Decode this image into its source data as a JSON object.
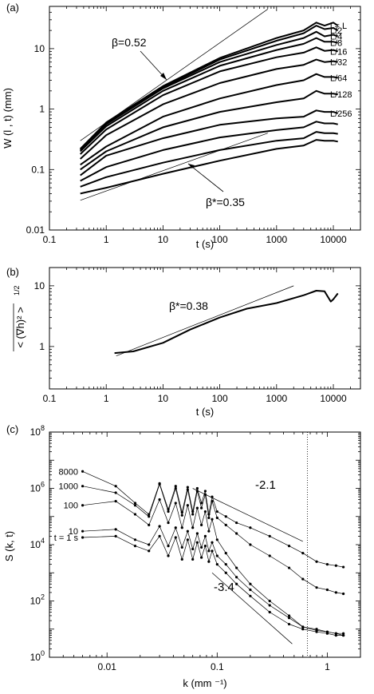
{
  "chart_data": [
    {
      "panel": "(a)",
      "type": "line",
      "xlabel": "t (s)",
      "ylabel": "W (l , t) (mm)",
      "xscale": "log",
      "yscale": "log",
      "xlim": [
        0.1,
        30000
      ],
      "ylim": [
        0.01,
        50
      ],
      "xticks": [
        {
          "v": 0.1,
          "l": "0.1"
        },
        {
          "v": 1,
          "l": "1"
        },
        {
          "v": 10,
          "l": "10"
        },
        {
          "v": 100,
          "l": "100"
        },
        {
          "v": 1000,
          "l": "1000"
        },
        {
          "v": 10000,
          "l": "10000"
        }
      ],
      "yticks": [
        {
          "v": 0.01,
          "l": "0.01"
        },
        {
          "v": 0.1,
          "l": "0.1"
        },
        {
          "v": 1,
          "l": "1"
        },
        {
          "v": 10,
          "l": "10"
        }
      ],
      "series": [
        {
          "name": "l = L",
          "x": [
            0.35,
            1,
            10,
            100,
            1000,
            3000,
            5000,
            7000,
            10000,
            12000
          ],
          "y": [
            0.22,
            0.6,
            2.4,
            7.0,
            15,
            20,
            27,
            24,
            27,
            24
          ]
        },
        {
          "name": "L/2",
          "x": [
            0.35,
            1,
            10,
            100,
            1000,
            3000,
            5000,
            7000,
            10000,
            12000
          ],
          "y": [
            0.22,
            0.59,
            2.3,
            6.6,
            13.5,
            18,
            24,
            21,
            22,
            20
          ]
        },
        {
          "name": "L/4",
          "x": [
            0.35,
            1,
            10,
            100,
            1000,
            3000,
            5000,
            7000,
            10000,
            12000
          ],
          "y": [
            0.21,
            0.56,
            2.2,
            6.0,
            11.5,
            15,
            19,
            16,
            17,
            16
          ]
        },
        {
          "name": "L/8",
          "x": [
            0.35,
            1,
            10,
            100,
            1000,
            3000,
            5000,
            7000,
            10000,
            12000
          ],
          "y": [
            0.2,
            0.52,
            2.0,
            5.2,
            9.5,
            12,
            15,
            13,
            13,
            12.5
          ]
        },
        {
          "name": "L/16",
          "x": [
            0.35,
            1,
            10,
            100,
            1000,
            3000,
            5000,
            7000,
            10000,
            12000
          ],
          "y": [
            0.18,
            0.46,
            1.7,
            4.2,
            7.2,
            8.6,
            10.5,
            9.2,
            9.5,
            9
          ]
        },
        {
          "name": "L/32",
          "x": [
            0.35,
            1,
            10,
            100,
            1000,
            3000,
            5000,
            7000,
            10000,
            12000
          ],
          "y": [
            0.15,
            0.37,
            1.2,
            2.7,
            4.6,
            5.4,
            6.6,
            6.0,
            6.2,
            6.0
          ]
        },
        {
          "name": "L/64",
          "x": [
            0.35,
            1,
            10,
            100,
            1000,
            3000,
            5000,
            7000,
            10000,
            12000
          ],
          "y": [
            0.12,
            0.24,
            0.75,
            1.5,
            2.5,
            3.0,
            3.8,
            3.4,
            3.4,
            3.3
          ]
        },
        {
          "name": "L/128",
          "x": [
            0.35,
            1,
            10,
            100,
            1000,
            3000,
            5000,
            7000,
            10000,
            12000
          ],
          "y": [
            0.1,
            0.2,
            0.5,
            0.9,
            1.3,
            1.5,
            2.0,
            1.8,
            1.8,
            1.75
          ]
        },
        {
          "name": "L/256",
          "x": [
            0.35,
            1,
            10,
            100,
            1000,
            3000,
            5000,
            7000,
            10000,
            12000
          ],
          "y": [
            0.08,
            0.17,
            0.33,
            0.55,
            0.7,
            0.75,
            0.95,
            0.9,
            0.9,
            0.85
          ]
        },
        {
          "name": "",
          "x": [
            0.35,
            1,
            10,
            100,
            1000,
            3000,
            5000,
            7000,
            10000,
            12000
          ],
          "y": [
            0.065,
            0.11,
            0.21,
            0.34,
            0.45,
            0.5,
            0.62,
            0.58,
            0.58,
            0.56
          ]
        },
        {
          "name": "",
          "x": [
            0.35,
            1,
            10,
            100,
            1000,
            3000,
            5000,
            7000,
            10000,
            12000
          ],
          "y": [
            0.052,
            0.075,
            0.13,
            0.21,
            0.3,
            0.33,
            0.42,
            0.4,
            0.4,
            0.39
          ]
        },
        {
          "name": "",
          "x": [
            0.35,
            1,
            10,
            100,
            1000,
            3000,
            5000,
            7000,
            10000,
            12000
          ],
          "y": [
            0.04,
            0.05,
            0.085,
            0.14,
            0.22,
            0.25,
            0.31,
            0.3,
            0.3,
            0.29
          ]
        }
      ],
      "guide_lines": [
        {
          "x": [
            0.35,
            700
          ],
          "y": [
            0.3,
            45
          ]
        },
        {
          "x": [
            0.35,
            700
          ],
          "y": [
            0.031,
            0.4
          ]
        }
      ],
      "annotations": {
        "beta": "β=0.52",
        "beta_star": "β*=0.35"
      }
    },
    {
      "panel": "(b)",
      "type": "line",
      "xlabel": "t (s)",
      "ylabel": "< (∇h)² >",
      "ylabel_exponent": "1/2",
      "xscale": "log",
      "yscale": "log",
      "xlim": [
        0.1,
        30000
      ],
      "ylim": [
        0.2,
        20
      ],
      "xticks": [
        {
          "v": 0.1,
          "l": "0.1"
        },
        {
          "v": 1,
          "l": "1"
        },
        {
          "v": 10,
          "l": "10"
        },
        {
          "v": 100,
          "l": "100"
        },
        {
          "v": 1000,
          "l": "1000"
        },
        {
          "v": 10000,
          "l": "10000"
        }
      ],
      "yticks": [
        {
          "v": 1,
          "l": "1"
        },
        {
          "v": 10,
          "l": "10"
        }
      ],
      "series": [
        {
          "name": "",
          "x": [
            1.4,
            3,
            10,
            30,
            100,
            300,
            1000,
            3000,
            5000,
            7000,
            9000,
            10000,
            12000
          ],
          "y": [
            0.78,
            0.83,
            1.15,
            1.9,
            3.0,
            4.2,
            5.2,
            7.0,
            8.3,
            8.1,
            5.5,
            6.0,
            7.5
          ]
        }
      ],
      "guide_lines": [
        {
          "x": [
            1.5,
            2000
          ],
          "y": [
            0.7,
            10
          ]
        }
      ],
      "annotations": {
        "beta_star": "β*=0.38"
      }
    },
    {
      "panel": "(c)",
      "type": "scatter",
      "xlabel": "k (mm ⁻¹)",
      "ylabel": "S (k, t)",
      "xscale": "log",
      "yscale": "log",
      "xlim": [
        0.003,
        2
      ],
      "ylim": [
        1,
        100000000
      ],
      "xticks": [
        {
          "v": 0.01,
          "l": "0.01"
        },
        {
          "v": 0.1,
          "l": "0.1"
        },
        {
          "v": 1,
          "l": "1"
        }
      ],
      "yticks": [
        {
          "v": 1,
          "l": "10",
          "e": "0"
        },
        {
          "v": 100,
          "l": "10",
          "e": "2"
        },
        {
          "v": 10000,
          "l": "10",
          "e": "4"
        },
        {
          "v": 1000000,
          "l": "10",
          "e": "6"
        },
        {
          "v": 100000000,
          "l": "10",
          "e": "8"
        }
      ],
      "vline_x": 0.66,
      "series": [
        {
          "name": "8000",
          "x": [
            0.006,
            0.012,
            0.018,
            0.024,
            0.03,
            0.036,
            0.042,
            0.048,
            0.054,
            0.06,
            0.066,
            0.072,
            0.078,
            0.084,
            0.09,
            0.1,
            0.12,
            0.15,
            0.2,
            0.3,
            0.45,
            0.6,
            0.8,
            1.0,
            1.2,
            1.4
          ],
          "y": [
            4000000,
            1200000,
            300000,
            120000,
            1500000,
            180000,
            1200000,
            140000,
            1100000,
            150000,
            1000000,
            300000,
            800000,
            120000,
            500000,
            150000,
            100000,
            60000,
            40000,
            20000,
            9000,
            5000,
            2500,
            2000,
            1800,
            1600
          ]
        },
        {
          "name": "1000",
          "x": [
            0.006,
            0.012,
            0.018,
            0.024,
            0.03,
            0.036,
            0.042,
            0.048,
            0.054,
            0.06,
            0.066,
            0.072,
            0.078,
            0.084,
            0.09,
            0.1,
            0.12,
            0.15,
            0.2,
            0.3,
            0.45,
            0.6,
            0.8,
            1.0,
            1.2,
            1.4
          ],
          "y": [
            1200000,
            700000,
            250000,
            100000,
            1400000,
            150000,
            1000000,
            110000,
            900000,
            120000,
            800000,
            200000,
            600000,
            90000,
            350000,
            90000,
            50000,
            25000,
            10000,
            4000,
            1500,
            600,
            300,
            250,
            200,
            180
          ]
        },
        {
          "name": "100",
          "x": [
            0.006,
            0.012,
            0.018,
            0.024,
            0.03,
            0.036,
            0.042,
            0.048,
            0.054,
            0.06,
            0.066,
            0.072,
            0.078,
            0.084,
            0.09,
            0.1,
            0.12,
            0.15,
            0.2,
            0.3,
            0.45,
            0.6,
            0.8,
            1.0,
            1.2,
            1.4
          ],
          "y": [
            250000,
            350000,
            120000,
            50000,
            400000,
            60000,
            300000,
            40000,
            250000,
            40000,
            200000,
            50000,
            150000,
            30000,
            80000,
            15000,
            5000,
            1500,
            400,
            100,
            30,
            12,
            10,
            8,
            7,
            7
          ]
        },
        {
          "name": "10",
          "x": [
            0.006,
            0.012,
            0.018,
            0.024,
            0.03,
            0.036,
            0.042,
            0.048,
            0.054,
            0.06,
            0.066,
            0.072,
            0.078,
            0.084,
            0.09,
            0.1,
            0.12,
            0.15,
            0.2,
            0.3,
            0.45,
            0.6,
            0.8,
            1.0,
            1.2,
            1.4
          ],
          "y": [
            30000,
            35000,
            15000,
            10000,
            45000,
            9000,
            40000,
            8000,
            30000,
            7000,
            25000,
            8000,
            20000,
            6000,
            12000,
            4000,
            2000,
            700,
            250,
            70,
            25,
            12,
            9,
            8,
            7,
            6
          ]
        },
        {
          "name": "t = 1 s",
          "x": [
            0.006,
            0.012,
            0.018,
            0.024,
            0.03,
            0.036,
            0.042,
            0.048,
            0.054,
            0.06,
            0.066,
            0.072,
            0.078,
            0.084,
            0.09,
            0.1,
            0.12,
            0.15,
            0.2,
            0.3,
            0.45,
            0.6,
            0.8,
            1.0,
            1.2,
            1.4
          ],
          "y": [
            18000,
            20000,
            9000,
            6000,
            20000,
            4000,
            18000,
            3000,
            15000,
            3000,
            12000,
            3500,
            9000,
            2500,
            6000,
            2000,
            1000,
            400,
            150,
            40,
            15,
            10,
            8,
            7,
            6,
            6
          ]
        }
      ],
      "guide_lines": [
        {
          "x": [
            0.06,
            0.6
          ],
          "y": [
            1000000,
            13000
          ]
        },
        {
          "x": [
            0.09,
            0.48
          ],
          "y": [
            1000,
            3
          ]
        }
      ],
      "annotations": {
        "slope1": "-2.1",
        "slope2": "-3.4"
      }
    }
  ]
}
